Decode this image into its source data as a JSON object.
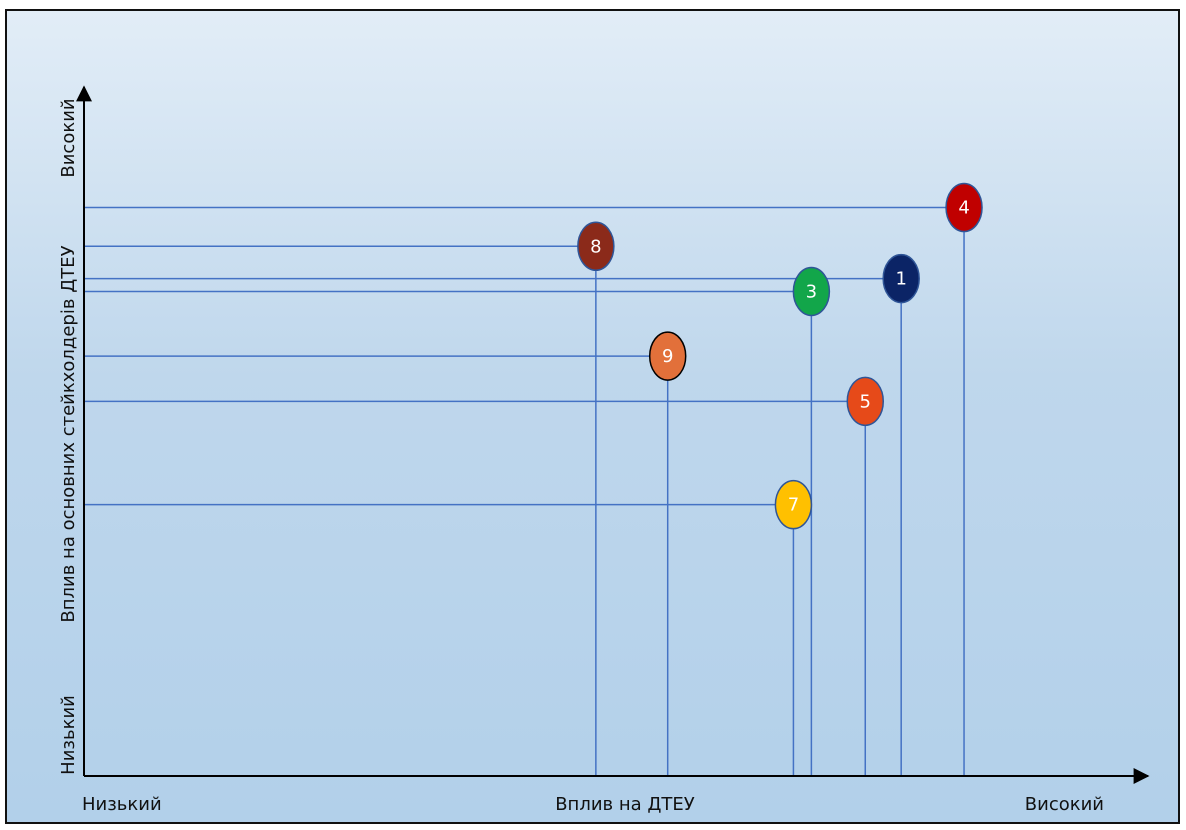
{
  "chart_data": {
    "type": "scatter",
    "title": "",
    "xlabel": "Вплив на ДТЕУ",
    "ylabel": "Вплив на основних стейкхолдерів ДТЕУ",
    "x_tick_low": "Низький",
    "x_tick_high": "Високий",
    "y_tick_low": "Низький",
    "y_tick_high": "Високий",
    "xlim": [
      0,
      100
    ],
    "ylim": [
      0,
      100
    ],
    "grid": false,
    "points": [
      {
        "label": "4",
        "x": 98,
        "y": 88,
        "color": "#c00000"
      },
      {
        "label": "8",
        "x": 57,
        "y": 82,
        "color": "#8b2a1a"
      },
      {
        "label": "1",
        "x": 91,
        "y": 77,
        "color": "#0b2466"
      },
      {
        "label": "3",
        "x": 81,
        "y": 75,
        "color": "#12a64a"
      },
      {
        "label": "9",
        "x": 65,
        "y": 65,
        "color": "#e2703a"
      },
      {
        "label": "5",
        "x": 87,
        "y": 58,
        "color": "#e64a19"
      },
      {
        "label": "7",
        "x": 79,
        "y": 42,
        "color": "#ffc000"
      }
    ]
  }
}
